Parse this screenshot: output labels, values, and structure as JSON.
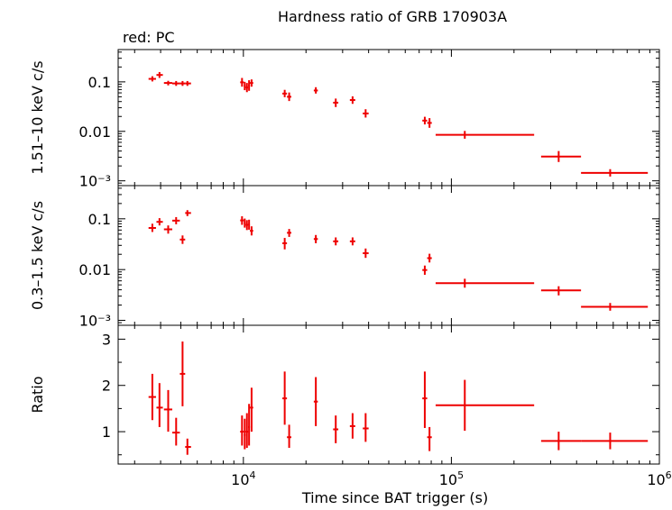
{
  "header": {
    "title": "Hardness ratio of GRB 170903A",
    "legend": "red: PC"
  },
  "chart_data": [
    {
      "type": "scatter",
      "panel": "top",
      "ylabel": "1.51–10 keV c/s",
      "yscale": "log",
      "ylim": [
        0.0008,
        0.45
      ],
      "yticks": [
        {
          "value": 0.1,
          "label": "0.1"
        },
        {
          "value": 0.01,
          "label": "0.01"
        },
        {
          "value": 0.001,
          "label": "10⁻³"
        }
      ],
      "xscale": "log",
      "xlim": [
        2500,
        1000000
      ],
      "grid": false,
      "series": [
        {
          "color": "#ee0000",
          "points": [
            {
              "x": 3650,
              "xlo": 3500,
              "xhi": 3800,
              "y": 0.115,
              "ylo": 0.102,
              "yhi": 0.13
            },
            {
              "x": 3950,
              "xlo": 3820,
              "xhi": 4100,
              "y": 0.138,
              "ylo": 0.12,
              "yhi": 0.158
            },
            {
              "x": 4350,
              "xlo": 4150,
              "xhi": 4550,
              "y": 0.095,
              "ylo": 0.085,
              "yhi": 0.105
            },
            {
              "x": 4750,
              "xlo": 4550,
              "xhi": 4950,
              "y": 0.093,
              "ylo": 0.083,
              "yhi": 0.104
            },
            {
              "x": 5100,
              "xlo": 4950,
              "xhi": 5250,
              "y": 0.093,
              "ylo": 0.083,
              "yhi": 0.104
            },
            {
              "x": 5380,
              "xlo": 5250,
              "xhi": 5600,
              "y": 0.093,
              "ylo": 0.083,
              "yhi": 0.104
            },
            {
              "x": 9850,
              "xlo": 9650,
              "xhi": 10050,
              "y": 0.098,
              "ylo": 0.08,
              "yhi": 0.12
            },
            {
              "x": 10150,
              "xlo": 10050,
              "xhi": 10250,
              "y": 0.083,
              "ylo": 0.068,
              "yhi": 0.1
            },
            {
              "x": 10400,
              "xlo": 10250,
              "xhi": 10550,
              "y": 0.077,
              "ylo": 0.062,
              "yhi": 0.095
            },
            {
              "x": 10650,
              "xlo": 10550,
              "xhi": 10750,
              "y": 0.085,
              "ylo": 0.066,
              "yhi": 0.108
            },
            {
              "x": 10950,
              "xlo": 10750,
              "xhi": 11150,
              "y": 0.095,
              "ylo": 0.08,
              "yhi": 0.112
            },
            {
              "x": 15800,
              "xlo": 15400,
              "xhi": 16200,
              "y": 0.058,
              "ylo": 0.049,
              "yhi": 0.069
            },
            {
              "x": 16600,
              "xlo": 16200,
              "xhi": 17000,
              "y": 0.05,
              "ylo": 0.041,
              "yhi": 0.061
            },
            {
              "x": 22300,
              "xlo": 21800,
              "xhi": 22800,
              "y": 0.067,
              "ylo": 0.058,
              "yhi": 0.078
            },
            {
              "x": 27800,
              "xlo": 27000,
              "xhi": 28600,
              "y": 0.038,
              "ylo": 0.031,
              "yhi": 0.046
            },
            {
              "x": 33500,
              "xlo": 32500,
              "xhi": 34500,
              "y": 0.043,
              "ylo": 0.036,
              "yhi": 0.051
            },
            {
              "x": 38700,
              "xlo": 37500,
              "xhi": 40000,
              "y": 0.023,
              "ylo": 0.019,
              "yhi": 0.028
            },
            {
              "x": 74500,
              "xlo": 72500,
              "xhi": 76500,
              "y": 0.0165,
              "ylo": 0.0138,
              "yhi": 0.0197
            },
            {
              "x": 78500,
              "xlo": 76500,
              "xhi": 80500,
              "y": 0.0148,
              "ylo": 0.0118,
              "yhi": 0.0185
            },
            {
              "x": 116000,
              "xlo": 84000,
              "xhi": 250000,
              "y": 0.0085,
              "ylo": 0.0071,
              "yhi": 0.0102
            },
            {
              "x": 328000,
              "xlo": 270000,
              "xhi": 420000,
              "y": 0.0031,
              "ylo": 0.0024,
              "yhi": 0.004
            },
            {
              "x": 580000,
              "xlo": 420000,
              "xhi": 880000,
              "y": 0.00145,
              "ylo": 0.00122,
              "yhi": 0.00172
            }
          ]
        }
      ]
    },
    {
      "type": "scatter",
      "panel": "middle",
      "ylabel": "0.3–1.5 keV c/s",
      "yscale": "log",
      "ylim": [
        0.0008,
        0.45
      ],
      "yticks": [
        {
          "value": 0.1,
          "label": "0.1"
        },
        {
          "value": 0.01,
          "label": "0.01"
        },
        {
          "value": 0.001,
          "label": "10⁻³"
        }
      ],
      "xscale": "log",
      "xlim": [
        2500,
        1000000
      ],
      "grid": false,
      "series": [
        {
          "color": "#ee0000",
          "points": [
            {
              "x": 3650,
              "xlo": 3500,
              "xhi": 3800,
              "y": 0.066,
              "ylo": 0.055,
              "yhi": 0.08
            },
            {
              "x": 3950,
              "xlo": 3820,
              "xhi": 4100,
              "y": 0.087,
              "ylo": 0.074,
              "yhi": 0.103
            },
            {
              "x": 4350,
              "xlo": 4150,
              "xhi": 4550,
              "y": 0.062,
              "ylo": 0.051,
              "yhi": 0.074
            },
            {
              "x": 4750,
              "xlo": 4550,
              "xhi": 4950,
              "y": 0.092,
              "ylo": 0.078,
              "yhi": 0.108
            },
            {
              "x": 5100,
              "xlo": 4950,
              "xhi": 5250,
              "y": 0.039,
              "ylo": 0.032,
              "yhi": 0.047
            },
            {
              "x": 5380,
              "xlo": 5250,
              "xhi": 5600,
              "y": 0.13,
              "ylo": 0.113,
              "yhi": 0.148
            },
            {
              "x": 9850,
              "xlo": 9650,
              "xhi": 10050,
              "y": 0.093,
              "ylo": 0.076,
              "yhi": 0.112
            },
            {
              "x": 10150,
              "xlo": 10050,
              "xhi": 10250,
              "y": 0.083,
              "ylo": 0.067,
              "yhi": 0.101
            },
            {
              "x": 10400,
              "xlo": 10250,
              "xhi": 10550,
              "y": 0.076,
              "ylo": 0.06,
              "yhi": 0.094
            },
            {
              "x": 10650,
              "xlo": 10550,
              "xhi": 10750,
              "y": 0.077,
              "ylo": 0.061,
              "yhi": 0.096
            },
            {
              "x": 10950,
              "xlo": 10750,
              "xhi": 11150,
              "y": 0.058,
              "ylo": 0.047,
              "yhi": 0.071
            },
            {
              "x": 15800,
              "xlo": 15400,
              "xhi": 16200,
              "y": 0.033,
              "ylo": 0.025,
              "yhi": 0.042
            },
            {
              "x": 16600,
              "xlo": 16200,
              "xhi": 17000,
              "y": 0.053,
              "ylo": 0.044,
              "yhi": 0.063
            },
            {
              "x": 22300,
              "xlo": 21800,
              "xhi": 22800,
              "y": 0.04,
              "ylo": 0.033,
              "yhi": 0.048
            },
            {
              "x": 27800,
              "xlo": 27000,
              "xhi": 28600,
              "y": 0.036,
              "ylo": 0.03,
              "yhi": 0.043
            },
            {
              "x": 33500,
              "xlo": 32500,
              "xhi": 34500,
              "y": 0.036,
              "ylo": 0.03,
              "yhi": 0.043
            },
            {
              "x": 38700,
              "xlo": 37500,
              "xhi": 40000,
              "y": 0.021,
              "ylo": 0.017,
              "yhi": 0.026
            },
            {
              "x": 74500,
              "xlo": 72500,
              "xhi": 76500,
              "y": 0.0098,
              "ylo": 0.0079,
              "yhi": 0.012
            },
            {
              "x": 78500,
              "xlo": 76500,
              "xhi": 80500,
              "y": 0.0168,
              "ylo": 0.0138,
              "yhi": 0.0205
            },
            {
              "x": 116000,
              "xlo": 84000,
              "xhi": 250000,
              "y": 0.0054,
              "ylo": 0.0044,
              "yhi": 0.0066
            },
            {
              "x": 328000,
              "xlo": 270000,
              "xhi": 420000,
              "y": 0.0039,
              "ylo": 0.0031,
              "yhi": 0.0047
            },
            {
              "x": 580000,
              "xlo": 420000,
              "xhi": 880000,
              "y": 0.00185,
              "ylo": 0.00155,
              "yhi": 0.0022
            }
          ]
        }
      ]
    },
    {
      "type": "scatter",
      "panel": "bottom",
      "ylabel": "Ratio",
      "yscale": "linear",
      "ylim": [
        0.3,
        3.3
      ],
      "yticks": [
        {
          "value": 1,
          "label": "1"
        },
        {
          "value": 2,
          "label": "2"
        },
        {
          "value": 3,
          "label": "3"
        }
      ],
      "xlabel": "Time since BAT trigger (s)",
      "xscale": "log",
      "xlim": [
        2500,
        1000000
      ],
      "xticks": [
        {
          "value": 10000,
          "base": "10",
          "exp": "4"
        },
        {
          "value": 100000,
          "base": "10",
          "exp": "5"
        },
        {
          "value": 1000000,
          "base": "10",
          "exp": "6"
        }
      ],
      "grid": false,
      "series": [
        {
          "color": "#ee0000",
          "points": [
            {
              "x": 3650,
              "xlo": 3500,
              "xhi": 3800,
              "y": 1.75,
              "ylo": 1.25,
              "yhi": 2.25
            },
            {
              "x": 3950,
              "xlo": 3820,
              "xhi": 4100,
              "y": 1.52,
              "ylo": 1.1,
              "yhi": 2.05
            },
            {
              "x": 4350,
              "xlo": 4150,
              "xhi": 4550,
              "y": 1.48,
              "ylo": 1.0,
              "yhi": 1.9
            },
            {
              "x": 4750,
              "xlo": 4550,
              "xhi": 4950,
              "y": 0.98,
              "ylo": 0.7,
              "yhi": 1.3
            },
            {
              "x": 5100,
              "xlo": 4950,
              "xhi": 5250,
              "y": 2.25,
              "ylo": 1.55,
              "yhi": 2.95
            },
            {
              "x": 5380,
              "xlo": 5250,
              "xhi": 5600,
              "y": 0.67,
              "ylo": 0.5,
              "yhi": 0.85
            },
            {
              "x": 9850,
              "xlo": 9650,
              "xhi": 10050,
              "y": 1.0,
              "ylo": 0.7,
              "yhi": 1.35
            },
            {
              "x": 10150,
              "xlo": 10050,
              "xhi": 10250,
              "y": 0.93,
              "ylo": 0.62,
              "yhi": 1.28
            },
            {
              "x": 10400,
              "xlo": 10250,
              "xhi": 10550,
              "y": 1.0,
              "ylo": 0.65,
              "yhi": 1.4
            },
            {
              "x": 10650,
              "xlo": 10550,
              "xhi": 10750,
              "y": 1.1,
              "ylo": 0.7,
              "yhi": 1.6
            },
            {
              "x": 10950,
              "xlo": 10750,
              "xhi": 11150,
              "y": 1.52,
              "ylo": 1.0,
              "yhi": 1.95
            },
            {
              "x": 15800,
              "xlo": 15400,
              "xhi": 16200,
              "y": 1.72,
              "ylo": 1.15,
              "yhi": 2.3
            },
            {
              "x": 16600,
              "xlo": 16200,
              "xhi": 17000,
              "y": 0.88,
              "ylo": 0.65,
              "yhi": 1.15
            },
            {
              "x": 22300,
              "xlo": 21800,
              "xhi": 22800,
              "y": 1.65,
              "ylo": 1.12,
              "yhi": 2.18
            },
            {
              "x": 27800,
              "xlo": 27000,
              "xhi": 28600,
              "y": 1.05,
              "ylo": 0.75,
              "yhi": 1.35
            },
            {
              "x": 33500,
              "xlo": 32500,
              "xhi": 34500,
              "y": 1.12,
              "ylo": 0.85,
              "yhi": 1.4
            },
            {
              "x": 38700,
              "xlo": 37500,
              "xhi": 40000,
              "y": 1.07,
              "ylo": 0.78,
              "yhi": 1.4
            },
            {
              "x": 74500,
              "xlo": 72500,
              "xhi": 76500,
              "y": 1.72,
              "ylo": 1.08,
              "yhi": 2.3
            },
            {
              "x": 78500,
              "xlo": 76500,
              "xhi": 80500,
              "y": 0.88,
              "ylo": 0.58,
              "yhi": 1.1
            },
            {
              "x": 116000,
              "xlo": 84000,
              "xhi": 250000,
              "y": 1.57,
              "ylo": 1.02,
              "yhi": 2.12
            },
            {
              "x": 328000,
              "xlo": 270000,
              "xhi": 420000,
              "y": 0.8,
              "ylo": 0.6,
              "yhi": 1.0
            },
            {
              "x": 580000,
              "xlo": 420000,
              "xhi": 880000,
              "y": 0.8,
              "ylo": 0.62,
              "yhi": 0.98
            }
          ]
        }
      ]
    }
  ]
}
